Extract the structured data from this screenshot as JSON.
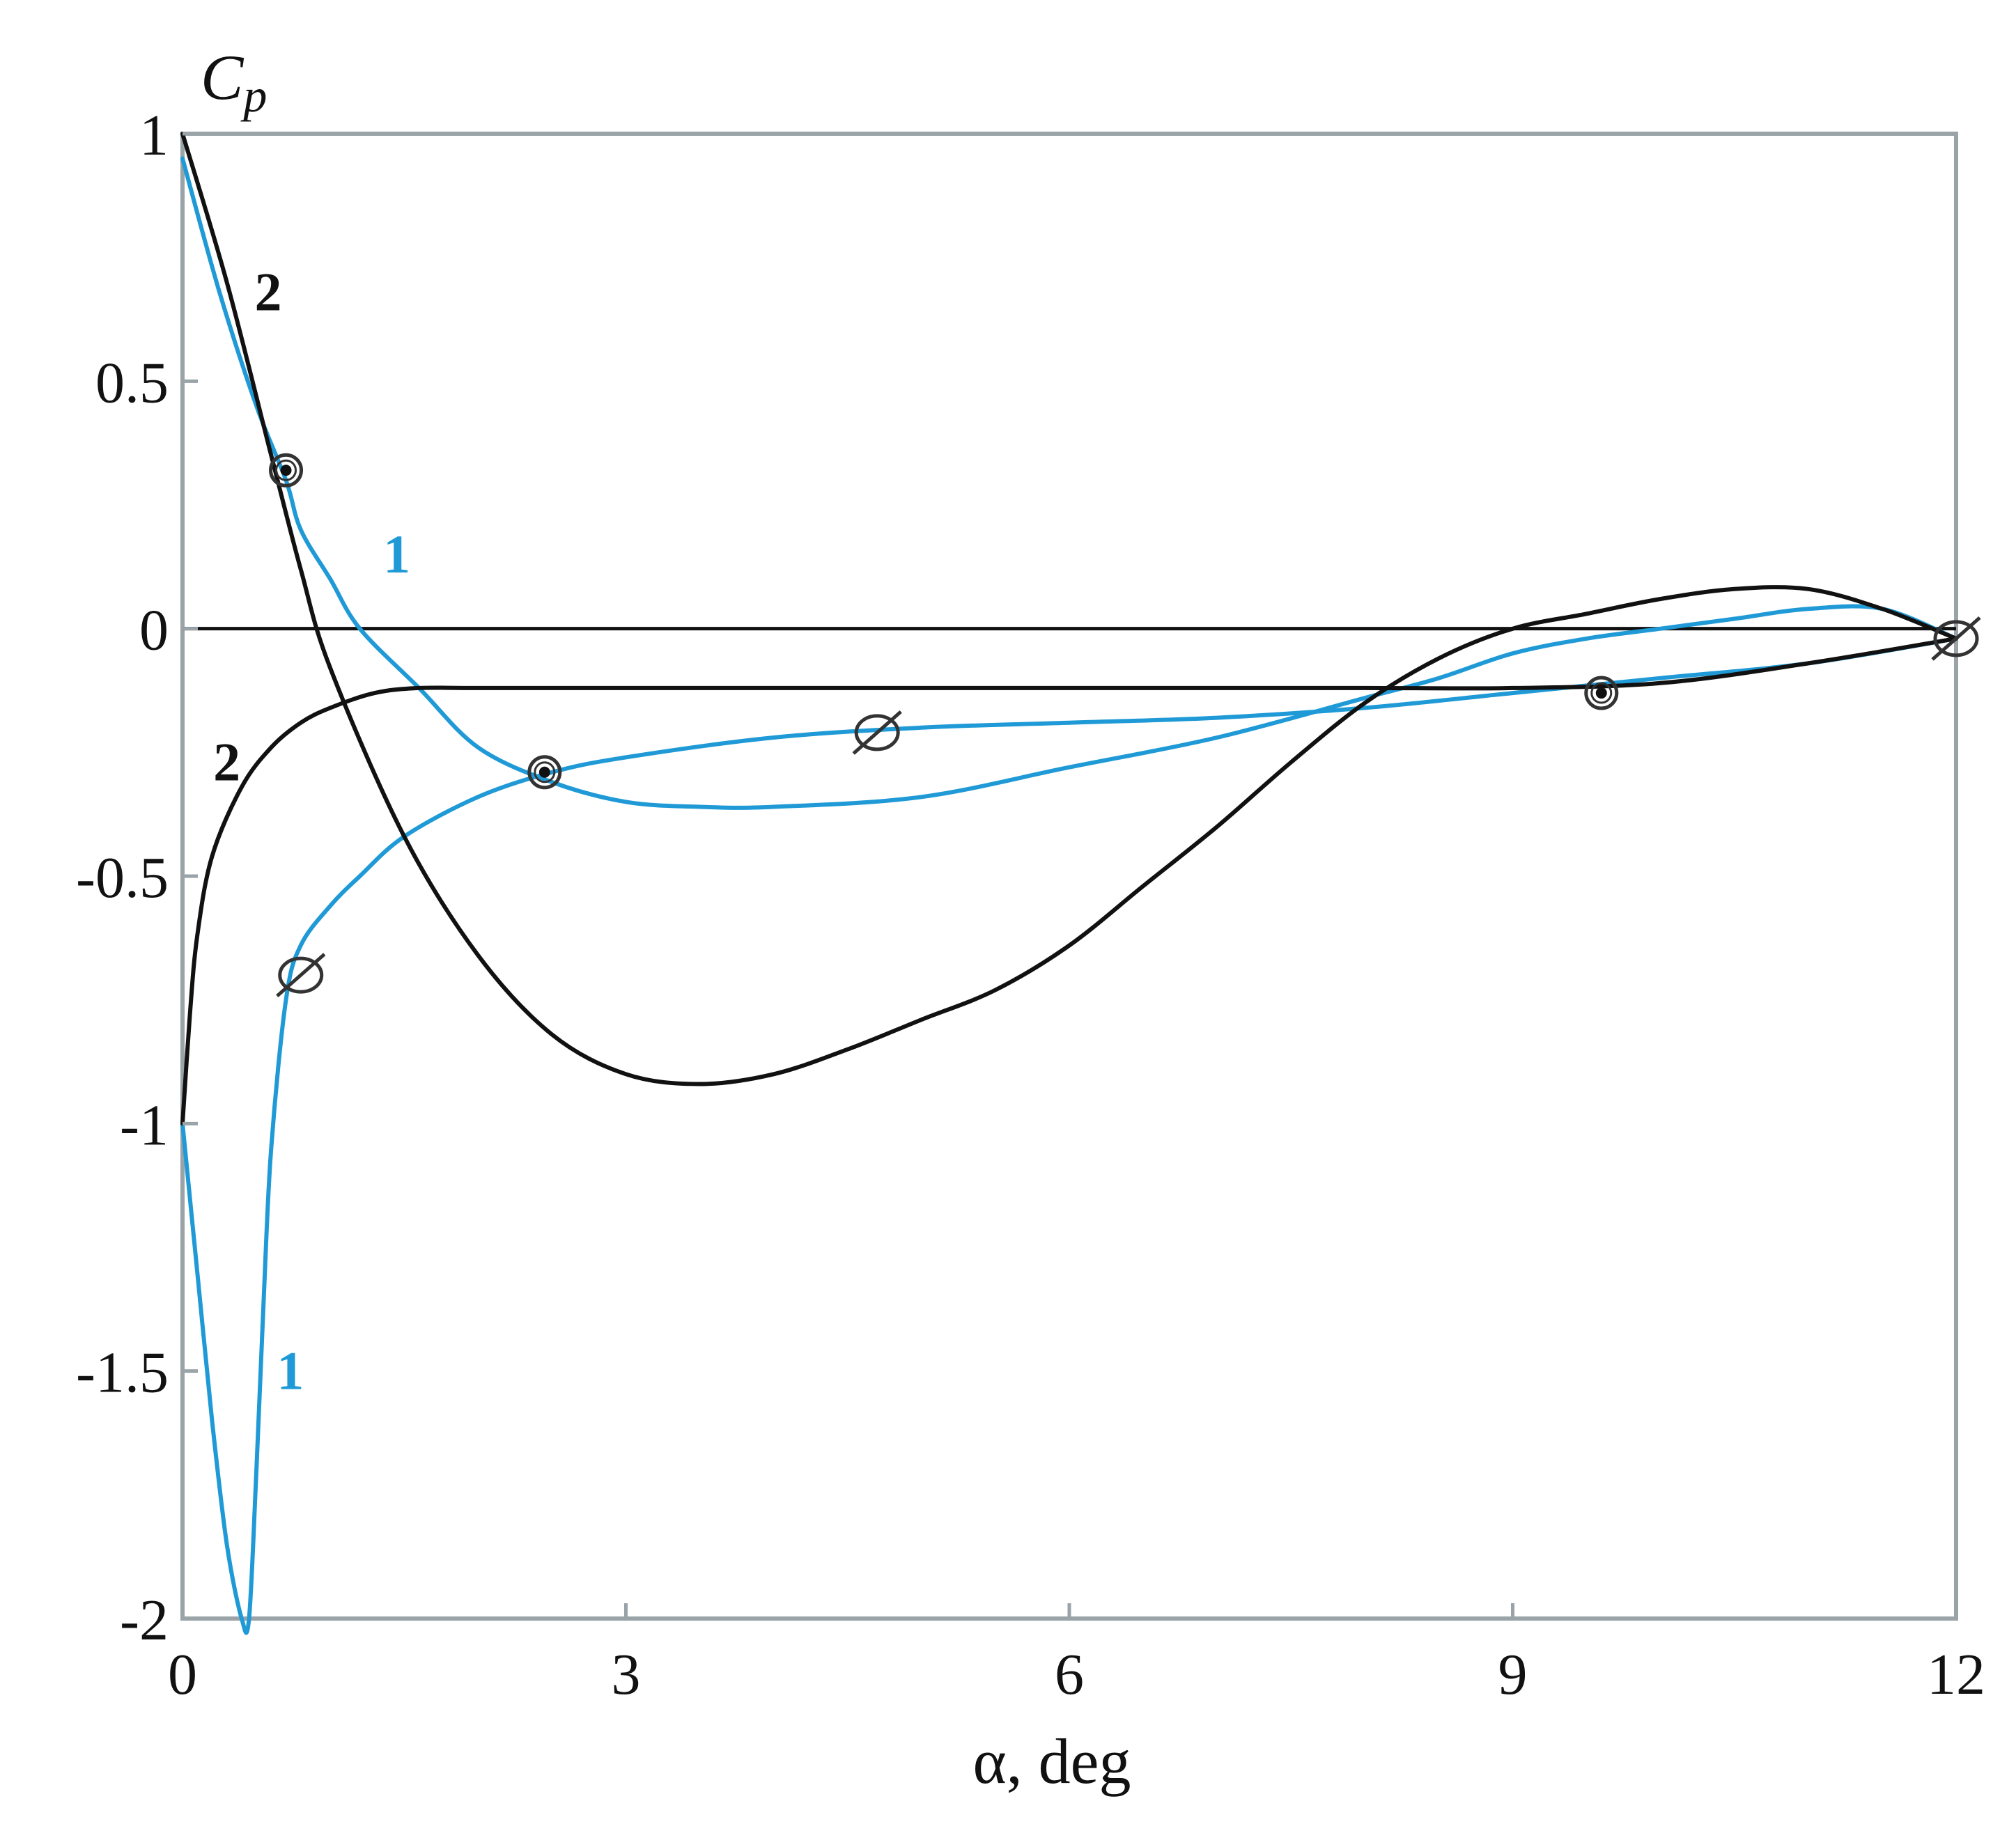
{
  "chart_data": {
    "type": "line",
    "xlabel": "α, deg",
    "ylabel": {
      "main": "C",
      "sub": "p"
    },
    "xlim": [
      0,
      12
    ],
    "ylim": [
      -2,
      1
    ],
    "x_ticks": [
      0,
      3,
      6,
      9,
      12
    ],
    "x_tick_labels": [
      "0",
      "3",
      "6",
      "9",
      "12"
    ],
    "y_ticks": [
      1,
      0.5,
      0,
      -0.5,
      -1,
      -1.5,
      -2
    ],
    "y_tick_labels": [
      "1",
      "0.5",
      "0",
      "-0.5",
      "-1",
      "-1.5",
      "-2"
    ],
    "grid": false,
    "zero_line": true,
    "colors": {
      "series_1": "#1f9ad6",
      "series_2": "#111111",
      "frame": "#9aa3a8",
      "markers": "#333333"
    },
    "series": [
      {
        "curve_label": "1",
        "branch": "upper",
        "color": "#1f9ad6",
        "x": [
          0,
          0.25,
          0.5,
          0.7,
          0.8,
          1.0,
          1.2,
          1.6,
          2.0,
          2.5,
          3.0,
          3.5,
          4.0,
          5.0,
          6.0,
          7.0,
          8.0,
          8.5,
          9.0,
          9.5,
          10.0,
          10.5,
          11.0,
          11.5,
          12.0
        ],
        "y": [
          0.95,
          0.68,
          0.45,
          0.3,
          0.2,
          0.1,
          0.0,
          -0.12,
          -0.24,
          -0.31,
          -0.35,
          -0.36,
          -0.36,
          -0.34,
          -0.28,
          -0.22,
          -0.14,
          -0.1,
          -0.05,
          -0.02,
          0.0,
          0.02,
          0.04,
          0.04,
          -0.02
        ]
      },
      {
        "curve_label": "1",
        "branch": "lower",
        "color": "#1f9ad6",
        "x": [
          0,
          0.1,
          0.2,
          0.3,
          0.4,
          0.45,
          0.5,
          0.55,
          0.6,
          0.7,
          0.8,
          1.0,
          1.2,
          1.5,
          2.0,
          2.5,
          3.0,
          4.0,
          5.0,
          6.0,
          7.0,
          8.0,
          9.0,
          10.0,
          11.0,
          12.0
        ],
        "y": [
          -1.0,
          -1.3,
          -1.6,
          -1.85,
          -2.0,
          -2.0,
          -1.7,
          -1.35,
          -1.05,
          -0.75,
          -0.64,
          -0.56,
          -0.5,
          -0.42,
          -0.34,
          -0.29,
          -0.26,
          -0.22,
          -0.2,
          -0.19,
          -0.18,
          -0.16,
          -0.13,
          -0.1,
          -0.07,
          -0.02
        ]
      },
      {
        "curve_label": "2",
        "branch": "upper",
        "color": "#111111",
        "x": [
          0,
          0.3,
          0.6,
          0.8,
          1.0,
          1.5,
          2.0,
          2.5,
          3.0,
          3.5,
          4.0,
          4.5,
          5.0,
          5.5,
          6.0,
          6.5,
          7.0,
          7.5,
          8.0,
          8.5,
          9.0,
          9.5,
          10.0,
          10.5,
          11.0,
          11.5,
          12.0
        ],
        "y": [
          1.0,
          0.7,
          0.35,
          0.12,
          -0.08,
          -0.42,
          -0.66,
          -0.82,
          -0.9,
          -0.92,
          -0.9,
          -0.85,
          -0.79,
          -0.73,
          -0.64,
          -0.52,
          -0.4,
          -0.27,
          -0.15,
          -0.06,
          0.0,
          0.03,
          0.06,
          0.08,
          0.08,
          0.04,
          -0.02
        ]
      },
      {
        "curve_label": "2",
        "branch": "lower",
        "color": "#111111",
        "x": [
          0,
          0.05,
          0.1,
          0.2,
          0.4,
          0.6,
          0.8,
          1.0,
          1.3,
          1.6,
          2.0,
          3.0,
          4.0,
          5.0,
          6.0,
          7.0,
          8.0,
          9.0,
          10.0,
          11.0,
          12.0
        ],
        "y": [
          -1.0,
          -0.78,
          -0.62,
          -0.46,
          -0.32,
          -0.24,
          -0.19,
          -0.16,
          -0.13,
          -0.12,
          -0.12,
          -0.12,
          -0.12,
          -0.12,
          -0.12,
          -0.12,
          -0.12,
          -0.12,
          -0.11,
          -0.07,
          -0.02
        ]
      }
    ],
    "markers": [
      {
        "x": 0.7,
        "y": 0.32,
        "kind": "dotted-circle"
      },
      {
        "x": 2.45,
        "y": -0.29,
        "kind": "dotted-circle"
      },
      {
        "x": 9.6,
        "y": -0.13,
        "kind": "dotted-circle"
      },
      {
        "x": 0.8,
        "y": -0.7,
        "kind": "crossed-circle"
      },
      {
        "x": 4.7,
        "y": -0.21,
        "kind": "crossed-circle"
      },
      {
        "x": 12.0,
        "y": -0.02,
        "kind": "crossed-circle"
      }
    ],
    "annotations": [
      {
        "text": "2",
        "x": 0.58,
        "y": 0.68,
        "series_color": "#111111"
      },
      {
        "text": "1",
        "x": 1.45,
        "y": 0.15,
        "series_color": "#1f9ad6"
      },
      {
        "text": "2",
        "x": 0.3,
        "y": -0.27,
        "series_color": "#111111"
      },
      {
        "text": "1",
        "x": 0.73,
        "y": -1.5,
        "series_color": "#1f9ad6"
      }
    ]
  }
}
